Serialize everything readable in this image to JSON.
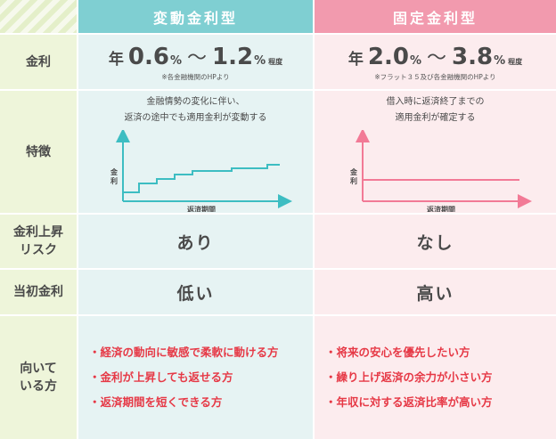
{
  "header": {
    "variable": "変動金利型",
    "fixed": "固定金利型"
  },
  "labels": {
    "rate": "金利",
    "feature": "特徴",
    "risk_line1": "金利上昇",
    "risk_line2": "リスク",
    "initial": "当初金利",
    "suited_line1": "向いて",
    "suited_line2": "いる方"
  },
  "variable": {
    "rate_prefix": "年",
    "rate_min": "0.6",
    "rate_max": "1.2",
    "percent": "%",
    "tilde": "～",
    "approx": "程度",
    "rate_note": "※各金融機関のHPより",
    "feature_line1": "金融情勢の変化に伴い、",
    "feature_line2": "返済の途中でも適用金利が変動する",
    "graph_ylabel": [
      "金",
      "利"
    ],
    "graph_xlabel": "返済期間",
    "risk": "あり",
    "initial": "低い",
    "suited": [
      "・経済の動向に敏感で柔軟に動ける方",
      "・金利が上昇しても返せる方",
      "・返済期間を短くできる方"
    ]
  },
  "fixed": {
    "rate_prefix": "年",
    "rate_min": "2.0",
    "rate_max": "3.8",
    "percent": "%",
    "tilde": "～",
    "approx": "程度",
    "rate_note": "※フラット３５及び各金融機関のHPより",
    "feature_line1": "借入時に返済終了までの",
    "feature_line2": "適用金利が確定する",
    "graph_ylabel": [
      "金",
      "利"
    ],
    "graph_xlabel": "返済期間",
    "risk": "なし",
    "initial": "高い",
    "suited": [
      "・将来の安心を優先したい方",
      "・繰り上げ返済の余力が小さい方",
      "・年収に対する返済比率が高い方"
    ]
  },
  "colors": {
    "variable_header": "#7fcfd2",
    "fixed_header": "#f29aae",
    "variable_bg": "#e6f3f3",
    "fixed_bg": "#fcecee",
    "label_bg": "#eef5da",
    "accent_red": "#e63946"
  }
}
